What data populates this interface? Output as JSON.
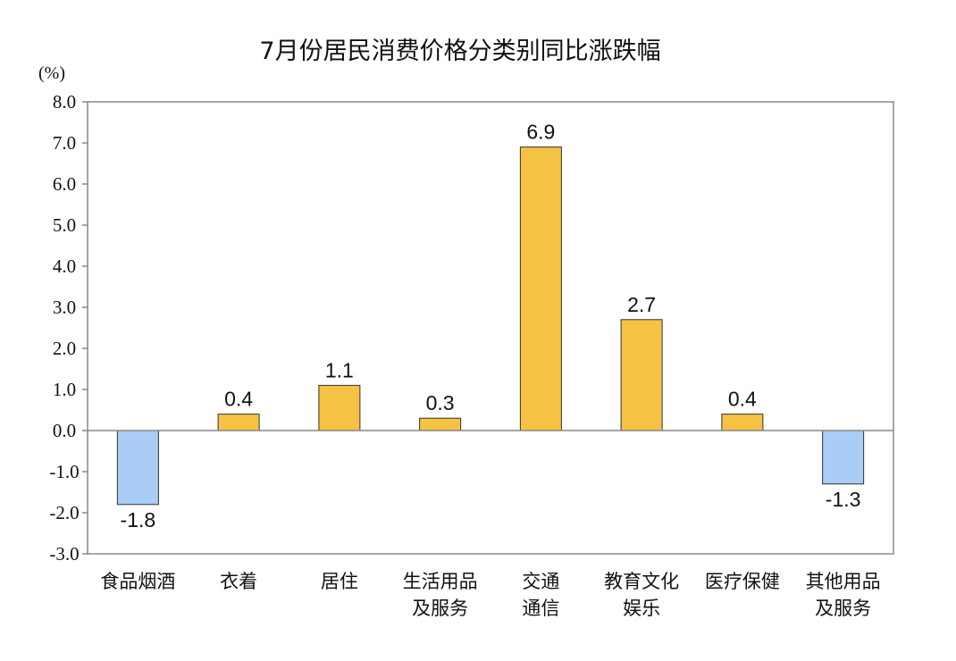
{
  "chart_data": {
    "type": "bar",
    "title": "7月份居民消费价格分类别同比涨跌幅",
    "ylabel": "(%)",
    "xlabel": "",
    "ylim": [
      -3.0,
      8.0
    ],
    "ytick_step": 1.0,
    "ytick_labels": [
      "8.0",
      "7.0",
      "6.0",
      "5.0",
      "4.0",
      "3.0",
      "2.0",
      "1.0",
      "0.0",
      "-1.0",
      "-2.0",
      "-3.0"
    ],
    "categories": [
      [
        "食品烟酒"
      ],
      [
        "衣着"
      ],
      [
        "居住"
      ],
      [
        "生活用品",
        "及服务"
      ],
      [
        "交通",
        "通信"
      ],
      [
        "教育文化",
        "娱乐"
      ],
      [
        "医疗保健"
      ],
      [
        "其他用品",
        "及服务"
      ]
    ],
    "values": [
      -1.8,
      0.4,
      1.1,
      0.3,
      6.9,
      2.7,
      0.4,
      -1.3
    ],
    "value_labels": [
      "-1.8",
      "0.4",
      "1.1",
      "0.3",
      "6.9",
      "2.7",
      "0.4",
      "-1.3"
    ],
    "grid": false,
    "legend": "none",
    "colors": {
      "positive": "#F5C243",
      "negative": "#A9CDF5",
      "bar_stroke": "#333333",
      "axis": "#888888"
    }
  }
}
